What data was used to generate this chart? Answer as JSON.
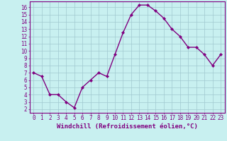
{
  "x": [
    0,
    1,
    2,
    3,
    4,
    5,
    6,
    7,
    8,
    9,
    10,
    11,
    12,
    13,
    14,
    15,
    16,
    17,
    18,
    19,
    20,
    21,
    22,
    23
  ],
  "y": [
    7.0,
    6.5,
    4.0,
    4.0,
    3.0,
    2.2,
    5.0,
    6.0,
    7.0,
    6.5,
    9.5,
    12.5,
    15.0,
    16.3,
    16.3,
    15.5,
    14.5,
    13.0,
    12.0,
    10.5,
    10.5,
    9.5,
    8.0,
    9.5
  ],
  "line_color": "#800080",
  "marker": "D",
  "marker_size": 2,
  "bg_color": "#c8f0f0",
  "grid_color": "#a0c8d0",
  "xlabel": "Windchill (Refroidissement éolien,°C)",
  "ylabel": "",
  "xlim": [
    -0.5,
    23.5
  ],
  "ylim": [
    1.5,
    16.8
  ],
  "yticks": [
    2,
    3,
    4,
    5,
    6,
    7,
    8,
    9,
    10,
    11,
    12,
    13,
    14,
    15,
    16
  ],
  "xticks": [
    0,
    1,
    2,
    3,
    4,
    5,
    6,
    7,
    8,
    9,
    10,
    11,
    12,
    13,
    14,
    15,
    16,
    17,
    18,
    19,
    20,
    21,
    22,
    23
  ],
  "axis_color": "#800080",
  "tick_label_color": "#800080",
  "font_size": 5.5,
  "label_font_size": 6.5,
  "line_width": 1.0
}
